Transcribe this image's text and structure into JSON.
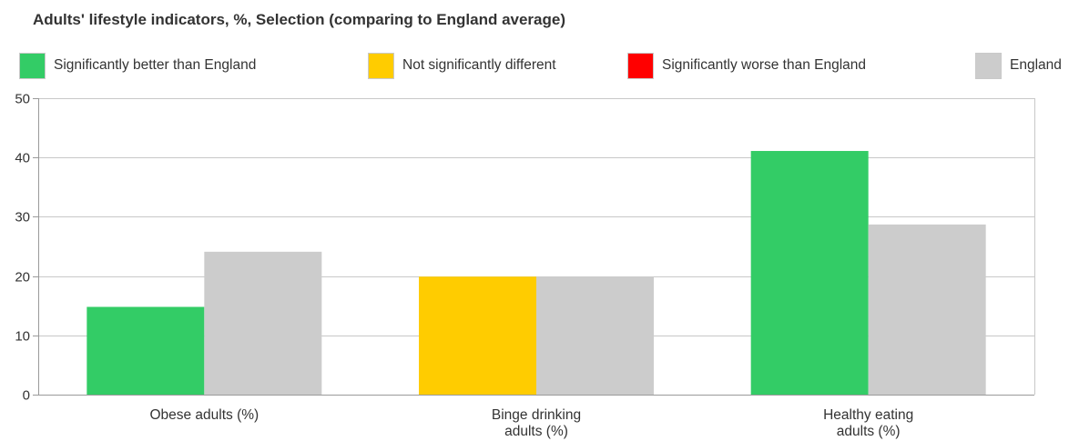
{
  "chart_data": {
    "type": "bar",
    "title": "Adults' lifestyle indicators, %, Selection (comparing to England average)",
    "categories": [
      [
        "Obese adults (%)"
      ],
      [
        "Binge drinking",
        "adults (%)"
      ],
      [
        "Healthy eating",
        "adults (%)"
      ]
    ],
    "series": [
      {
        "role": "Selection",
        "values": [
          14.8,
          19.9,
          41.1
        ],
        "colors": [
          "#33cc66",
          "#ffcc00",
          "#33cc66"
        ]
      },
      {
        "name": "England",
        "values": [
          24.1,
          19.9,
          28.7
        ],
        "colors": [
          "#cccccc",
          "#cccccc",
          "#cccccc"
        ]
      }
    ],
    "ylim": [
      0,
      50
    ],
    "yticks": [
      0,
      10,
      20,
      30,
      40,
      50
    ],
    "grid": true,
    "xlabel": "",
    "ylabel": ""
  },
  "legend": [
    {
      "label": "Significantly better than England",
      "color": "#33cc66"
    },
    {
      "label": "Not significantly different",
      "color": "#ffcc00"
    },
    {
      "label": "Significantly worse than England",
      "color": "#ff0000"
    },
    {
      "label": "England",
      "color": "#cccccc"
    }
  ]
}
